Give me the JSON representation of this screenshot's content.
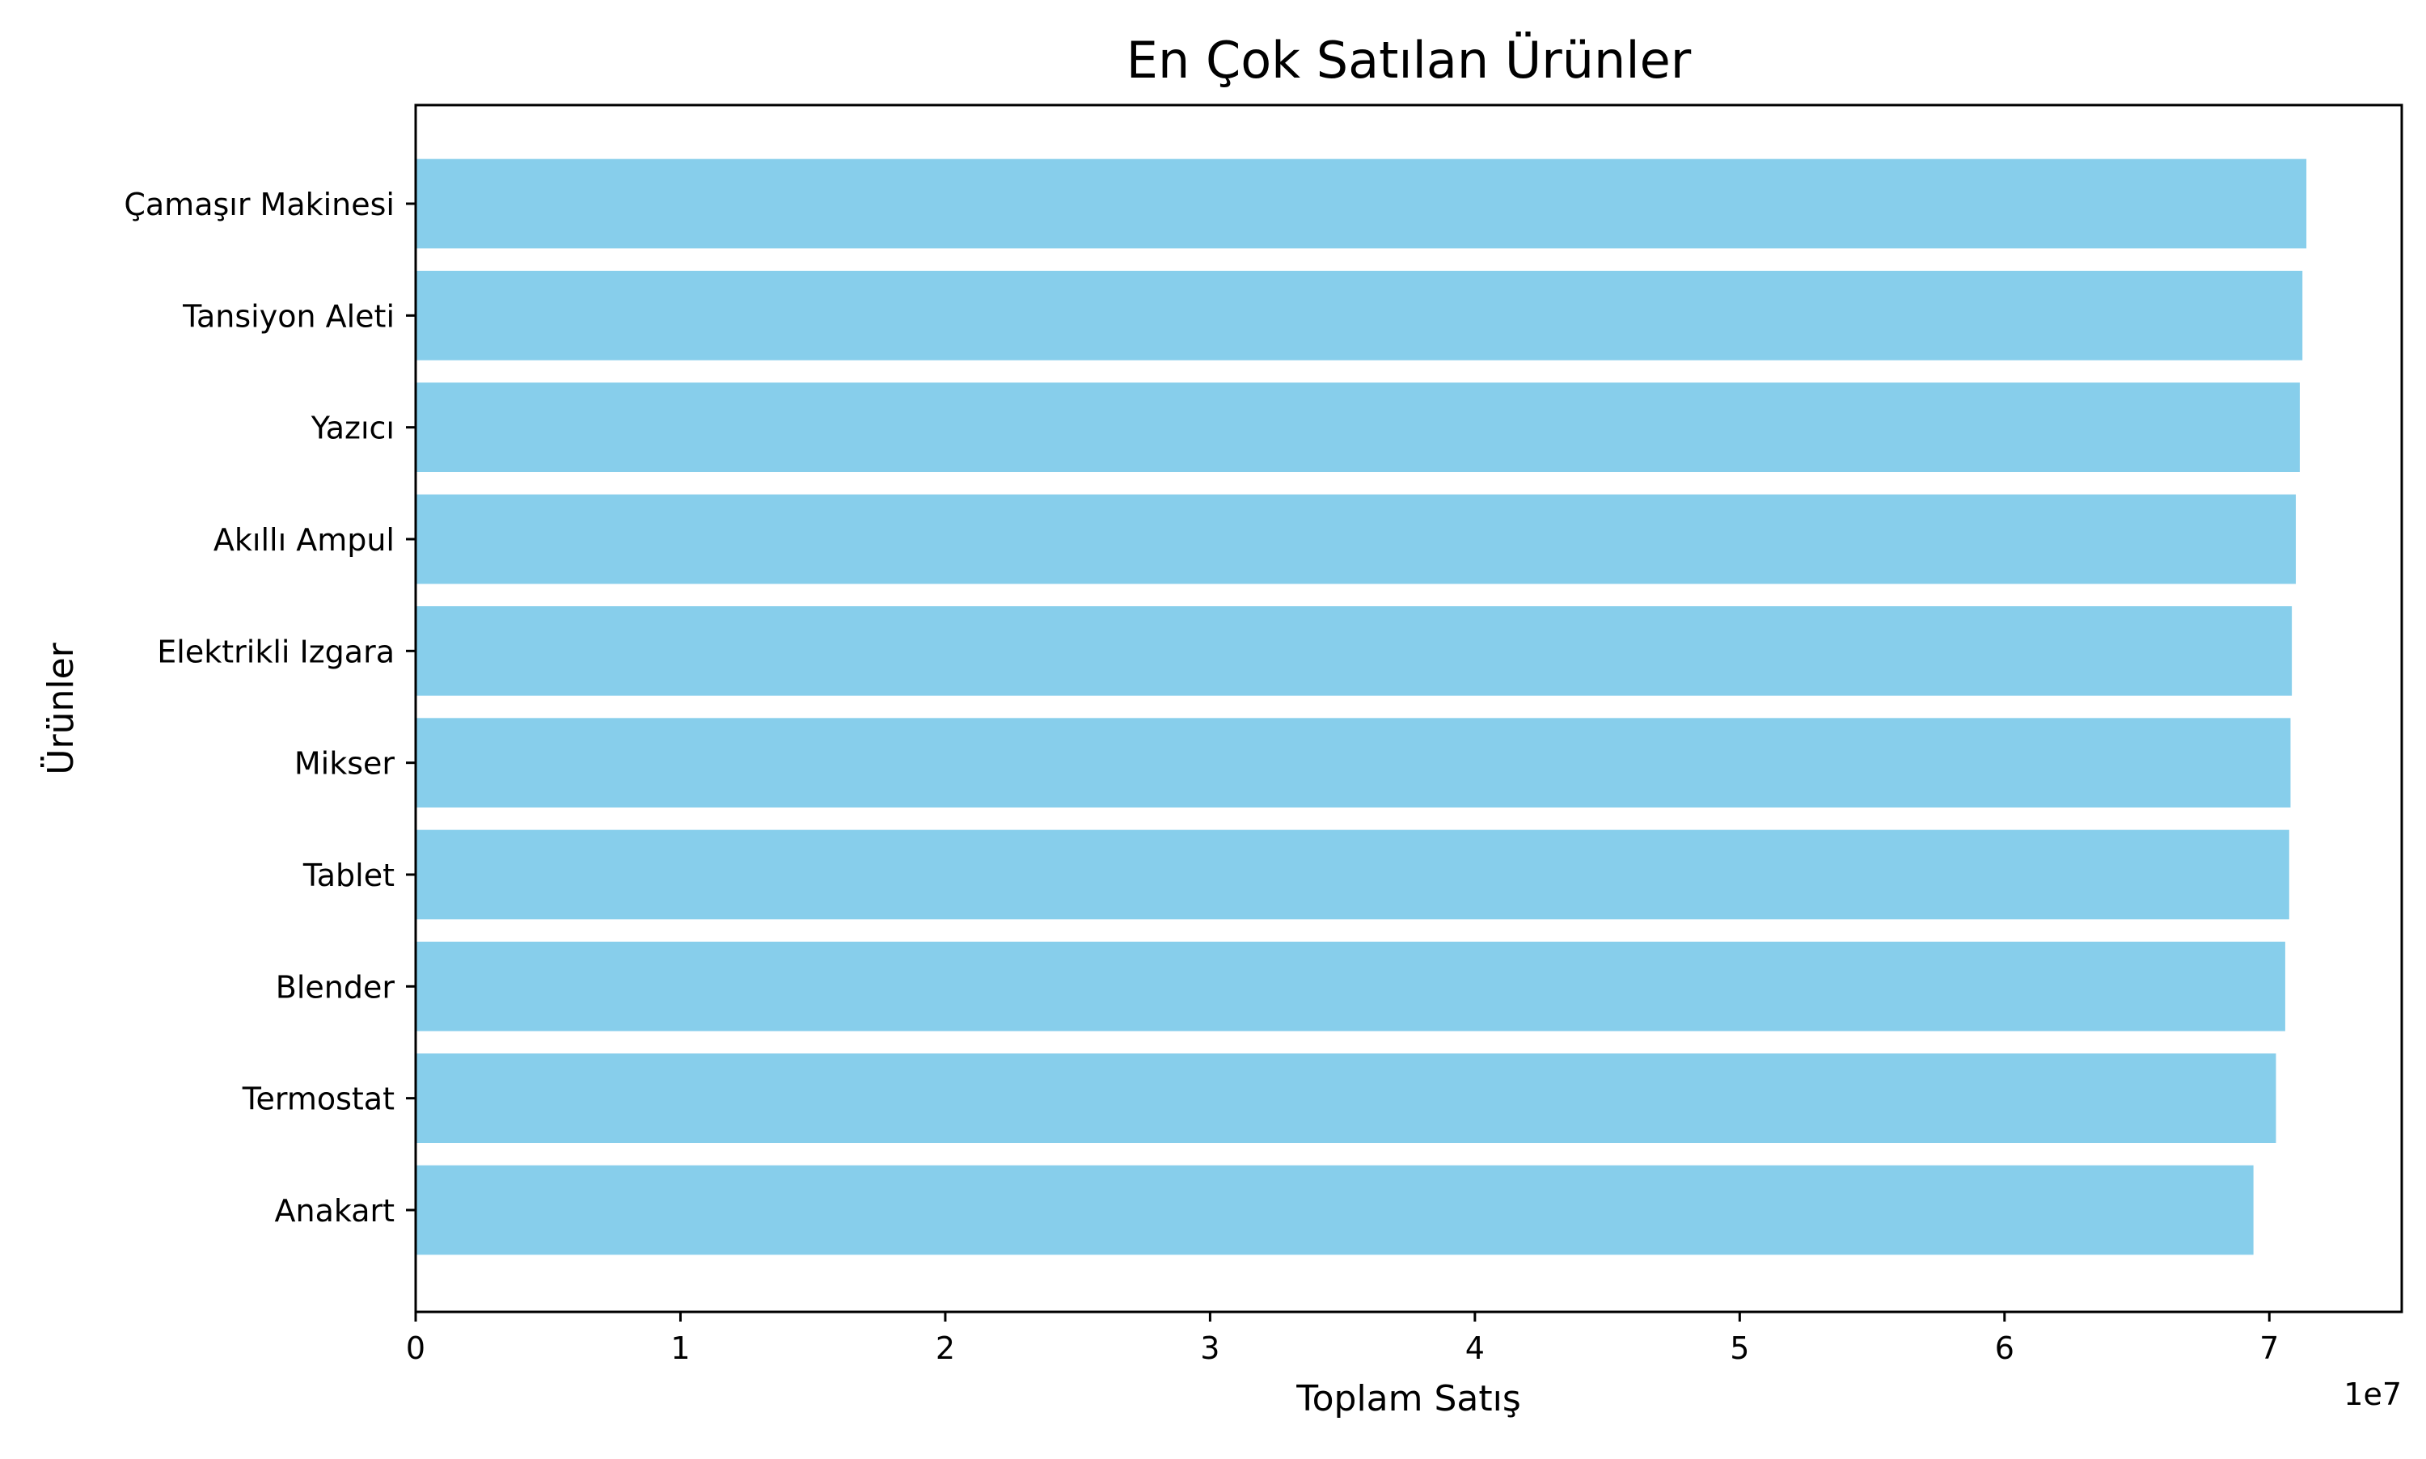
{
  "chart_data": {
    "type": "bar",
    "orientation": "horizontal",
    "title": "En Çok Satılan Ürünler",
    "xlabel": "Toplam Satış",
    "ylabel": "Ürünler",
    "x_scale_label": "1e7",
    "xlim": [
      0,
      75000000
    ],
    "x_ticks": [
      0,
      10000000,
      20000000,
      30000000,
      40000000,
      50000000,
      60000000,
      70000000
    ],
    "x_tick_labels": [
      "0",
      "1",
      "2",
      "3",
      "4",
      "5",
      "6",
      "7"
    ],
    "categories": [
      "Çamaşır Makinesi",
      "Tansiyon Aleti",
      "Yazıcı",
      "Akıllı Ampul",
      "Elektrikli Izgara",
      "Mikser",
      "Tablet",
      "Blender",
      "Termostat",
      "Anakart"
    ],
    "values": [
      71400000,
      71250000,
      71150000,
      71000000,
      70850000,
      70800000,
      70750000,
      70600000,
      70250000,
      69400000
    ],
    "bar_color": "#87ceeb",
    "grid": false,
    "legend": "none"
  }
}
